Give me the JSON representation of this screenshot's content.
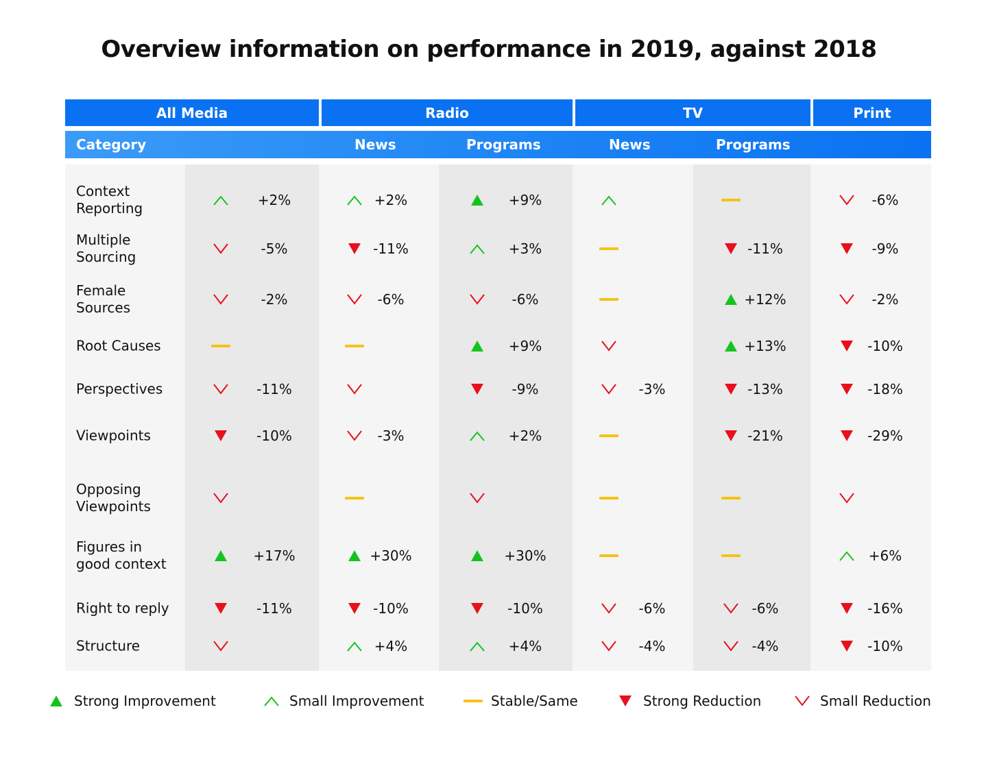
{
  "title": "Overview information on performance in 2019, against 2018",
  "colors": {
    "header_blue": "#0a72f2",
    "strong_improvement": "#14c41c",
    "small_improvement": "#14c41c",
    "stable": "#f5c314",
    "strong_reduction": "#e8101c",
    "small_reduction": "#e8101c"
  },
  "header": {
    "groups": [
      "All Media",
      "Radio",
      "TV",
      "Print"
    ],
    "category_label": "Category",
    "subheaders": [
      "News",
      "Programs",
      "News",
      "Programs"
    ]
  },
  "legend": [
    {
      "key": "strong_up",
      "label": "Strong Improvement"
    },
    {
      "key": "small_up",
      "label": "Small Improvement"
    },
    {
      "key": "stable",
      "label": "Stable/Same"
    },
    {
      "key": "strong_down",
      "label": "Strong Reduction"
    },
    {
      "key": "small_down",
      "label": "Small Reduction"
    }
  ],
  "chart_data": {
    "type": "table",
    "title": "Overview information on performance in 2019, against 2018",
    "columns": [
      "All Media",
      "Radio News",
      "Radio Programs",
      "TV News",
      "TV Programs",
      "Print"
    ],
    "rows": [
      {
        "label": "Context\nReporting",
        "cells": [
          {
            "trend": "small_up",
            "value": "+2%"
          },
          {
            "trend": "small_up",
            "value": "+2%"
          },
          {
            "trend": "strong_up",
            "value": "+9%"
          },
          {
            "trend": "small_up",
            "value": ""
          },
          {
            "trend": "stable",
            "value": ""
          },
          {
            "trend": "small_down",
            "value": "-6%"
          }
        ]
      },
      {
        "label": "Multiple\nSourcing",
        "cells": [
          {
            "trend": "small_down",
            "value": "-5%"
          },
          {
            "trend": "strong_down",
            "value": "-11%"
          },
          {
            "trend": "small_up",
            "value": "+3%"
          },
          {
            "trend": "stable",
            "value": ""
          },
          {
            "trend": "strong_down",
            "value": "-11%"
          },
          {
            "trend": "strong_down",
            "value": "-9%"
          }
        ]
      },
      {
        "label": "Female\nSources",
        "cells": [
          {
            "trend": "small_down",
            "value": "-2%"
          },
          {
            "trend": "small_down",
            "value": "-6%"
          },
          {
            "trend": "small_down",
            "value": "-6%"
          },
          {
            "trend": "stable",
            "value": ""
          },
          {
            "trend": "strong_up",
            "value": "+12%"
          },
          {
            "trend": "small_down",
            "value": "-2%"
          }
        ]
      },
      {
        "label": "Root Causes",
        "cells": [
          {
            "trend": "stable",
            "value": ""
          },
          {
            "trend": "stable",
            "value": ""
          },
          {
            "trend": "strong_up",
            "value": "+9%"
          },
          {
            "trend": "small_down",
            "value": ""
          },
          {
            "trend": "strong_up",
            "value": "+13%"
          },
          {
            "trend": "strong_down",
            "value": "-10%"
          }
        ]
      },
      {
        "label": "Perspectives",
        "cells": [
          {
            "trend": "small_down",
            "value": "-11%"
          },
          {
            "trend": "small_down",
            "value": ""
          },
          {
            "trend": "strong_down",
            "value": "-9%"
          },
          {
            "trend": "small_down",
            "value": "-3%"
          },
          {
            "trend": "strong_down",
            "value": "-13%"
          },
          {
            "trend": "strong_down",
            "value": "-18%"
          }
        ]
      },
      {
        "label": "Viewpoints",
        "cells": [
          {
            "trend": "strong_down",
            "value": "-10%"
          },
          {
            "trend": "small_down",
            "value": "-3%"
          },
          {
            "trend": "small_up",
            "value": "+2%"
          },
          {
            "trend": "stable",
            "value": ""
          },
          {
            "trend": "strong_down",
            "value": "-21%"
          },
          {
            "trend": "strong_down",
            "value": "-29%"
          }
        ]
      },
      {
        "label": "Opposing\nViewpoints",
        "cells": [
          {
            "trend": "small_down",
            "value": ""
          },
          {
            "trend": "stable",
            "value": ""
          },
          {
            "trend": "small_down",
            "value": ""
          },
          {
            "trend": "stable",
            "value": ""
          },
          {
            "trend": "stable",
            "value": ""
          },
          {
            "trend": "small_down",
            "value": ""
          }
        ]
      },
      {
        "label": "Figures in\ngood context",
        "cells": [
          {
            "trend": "strong_up",
            "value": "+17%"
          },
          {
            "trend": "strong_up",
            "value": "+30%"
          },
          {
            "trend": "strong_up",
            "value": "+30%"
          },
          {
            "trend": "stable",
            "value": ""
          },
          {
            "trend": "stable",
            "value": ""
          },
          {
            "trend": "small_up",
            "value": "+6%"
          }
        ]
      },
      {
        "label": "Right to reply",
        "cells": [
          {
            "trend": "strong_down",
            "value": "-11%"
          },
          {
            "trend": "strong_down",
            "value": "-10%"
          },
          {
            "trend": "strong_down",
            "value": "-10%"
          },
          {
            "trend": "small_down",
            "value": "-6%"
          },
          {
            "trend": "small_down",
            "value": "-6%"
          },
          {
            "trend": "strong_down",
            "value": "-16%"
          }
        ]
      },
      {
        "label": "Structure",
        "cells": [
          {
            "trend": "small_down",
            "value": ""
          },
          {
            "trend": "small_up",
            "value": "+4%"
          },
          {
            "trend": "small_up",
            "value": "+4%"
          },
          {
            "trend": "small_down",
            "value": "-4%"
          },
          {
            "trend": "small_down",
            "value": "-4%"
          },
          {
            "trend": "strong_down",
            "value": "-10%"
          }
        ]
      }
    ]
  }
}
